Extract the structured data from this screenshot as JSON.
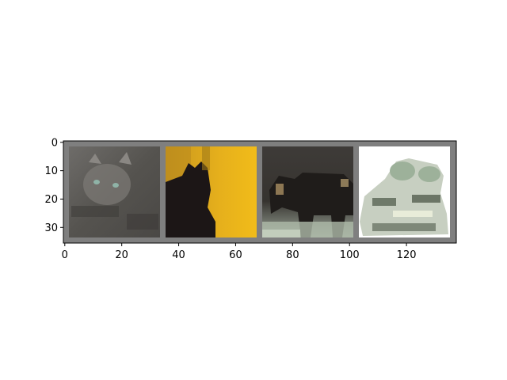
{
  "figure": {
    "image_grid": {
      "description_tiles": [
        "cat",
        "cat",
        "dog",
        "frog"
      ],
      "grid_color": "#7f7f7f",
      "width_units": 138,
      "height_units": 36
    },
    "x_axis": {
      "ticks": [
        0,
        20,
        40,
        60,
        80,
        100,
        120
      ],
      "range": [
        -0.5,
        137.5
      ]
    },
    "y_axis": {
      "ticks": [
        0,
        10,
        20,
        30
      ],
      "range": [
        35.5,
        -0.5
      ]
    }
  }
}
